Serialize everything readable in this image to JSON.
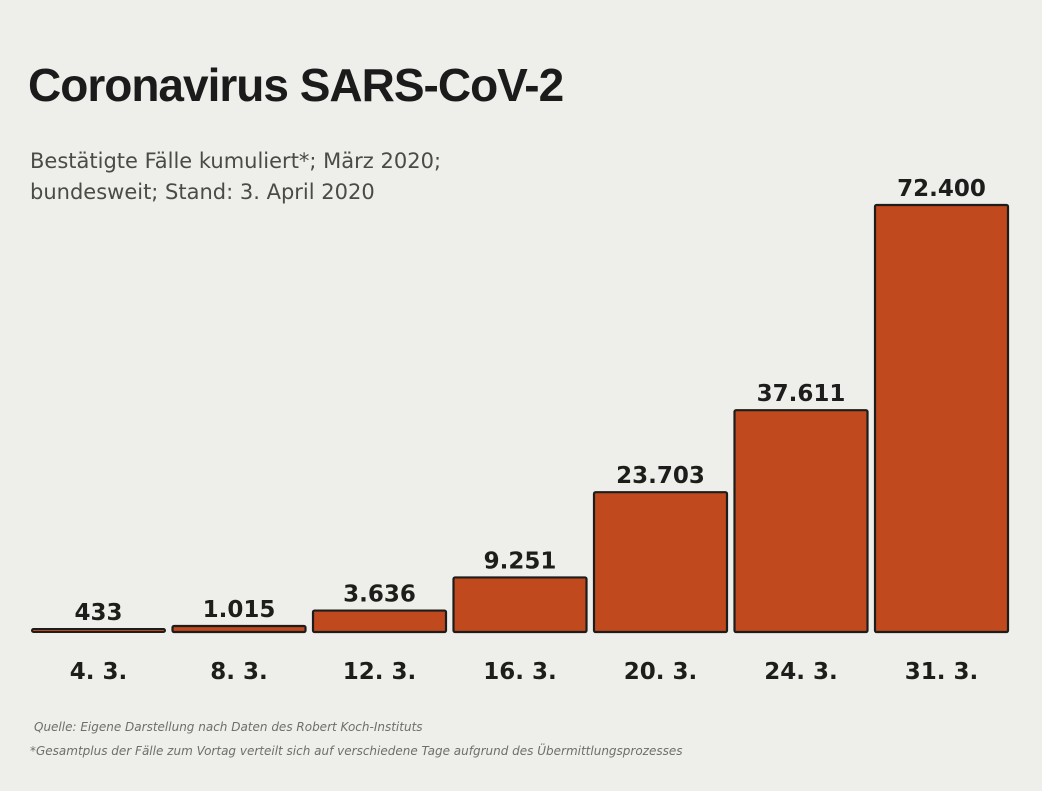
{
  "title": "Coronavirus SARS-CoV-2",
  "subtitle_line1": "Bestätigte Fälle kumuliert*; März 2020;",
  "subtitle_line2": "bundesweit; Stand: 3. April 2020",
  "source": "Quelle: Eigene Darstellung nach Daten des Robert Koch-Instituts",
  "footnote": "*Gesamtplus der Fälle zum Vortag verteilt sich auf verschiedene Tage aufgrund des Übermittlungsprozesses",
  "colors": {
    "bar_fill": "#c0491e",
    "bar_stroke": "#1d1d1b",
    "background": "#eeeeea"
  },
  "chart_data": {
    "type": "bar",
    "title": "Coronavirus SARS-CoV-2",
    "subtitle": "Bestätigte Fälle kumuliert*; März 2020; bundesweit; Stand: 3. April 2020",
    "xlabel": "",
    "ylabel": "",
    "grid": false,
    "ylim": [
      0,
      72400
    ],
    "categories": [
      "4. 3.",
      "8. 3.",
      "12. 3.",
      "16. 3.",
      "20. 3.",
      "24. 3.",
      "31. 3."
    ],
    "values": [
      433,
      1015,
      3636,
      9251,
      23703,
      37611,
      72400
    ],
    "value_labels": [
      "433",
      "1.015",
      "3.636",
      "9.251",
      "23.703",
      "37.611",
      "72.400"
    ]
  }
}
